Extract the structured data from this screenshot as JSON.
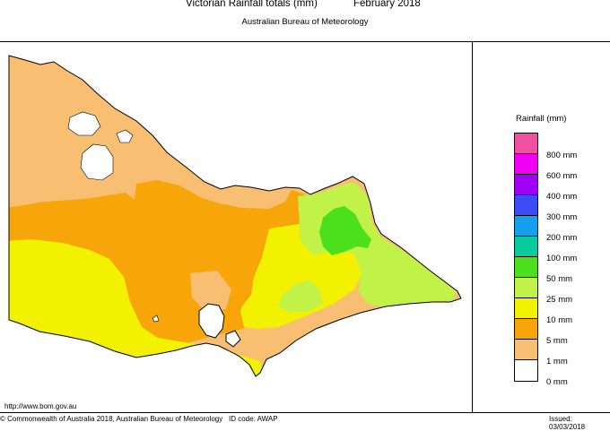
{
  "header": {
    "title": "Victorian Rainfall totals (mm)",
    "period": "February 2018",
    "subtitle": "Australian Bureau of Meteorology"
  },
  "map": {
    "region": "Victoria",
    "colors": {
      "0-1": "#ffffff",
      "1-5": "#f8bf72",
      "5-10": "#f7a508",
      "10-25": "#f2f200",
      "25-50": "#c1f248",
      "50-100": "#4be01b",
      "100-200": "#08cc9d",
      "200-300": "#149fef",
      "300-400": "#3c4df5",
      "400-600": "#a000f5",
      "600-800": "#f000f5",
      "800+": "#f050a2"
    }
  },
  "legend": {
    "title": "Rainfall (mm)",
    "swatches": [
      {
        "color": "#f050a2"
      },
      {
        "color": "#f000f5"
      },
      {
        "color": "#a000f5"
      },
      {
        "color": "#3c4df5"
      },
      {
        "color": "#149fef"
      },
      {
        "color": "#08cc9d"
      },
      {
        "color": "#4be01b"
      },
      {
        "color": "#c1f248"
      },
      {
        "color": "#f2f200"
      },
      {
        "color": "#f7a508"
      },
      {
        "color": "#f8bf72"
      },
      {
        "color": "#ffffff"
      }
    ],
    "labels": [
      "800 mm",
      "600 mm",
      "400 mm",
      "300 mm",
      "200 mm",
      "100 mm",
      "50 mm",
      "25 mm",
      "10 mm",
      "5 mm",
      "1 mm",
      "0 mm"
    ]
  },
  "footer": {
    "url": "http://www.bom.gov.au",
    "copyright": "© Commonwealth of Australia 2018, Australian Bureau of Meteorology",
    "id_code": "ID code: AWAP",
    "issued": "Issued: 03/03/2018"
  }
}
